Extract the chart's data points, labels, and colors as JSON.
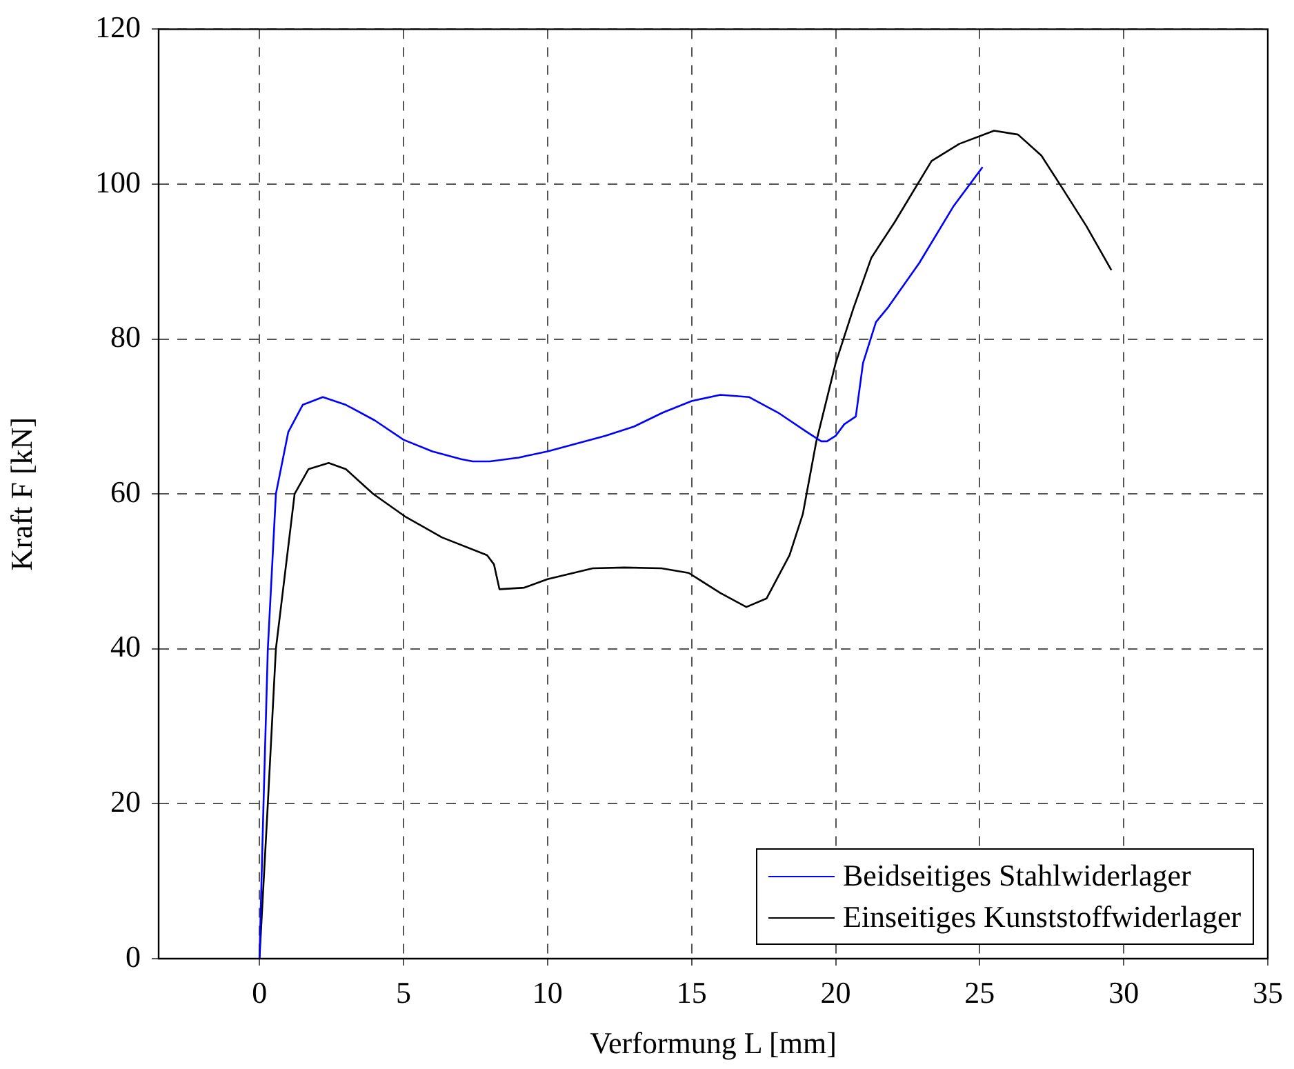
{
  "chart_data": {
    "type": "line",
    "xlabel": "Verformung L [mm]",
    "ylabel": "Kraft F [kN]",
    "xlim": [
      -3.5,
      35
    ],
    "ylim": [
      0,
      120
    ],
    "xticks": [
      0,
      5,
      10,
      15,
      20,
      25,
      30,
      35
    ],
    "yticks": [
      0,
      20,
      40,
      60,
      80,
      100,
      120
    ],
    "grid": true,
    "legend": "bottom right",
    "marker": "none",
    "series": [
      {
        "name": "Beidseitiges Stahlwiderlager",
        "color": "#0000ff",
        "x": [
          0,
          0.14,
          0.29,
          0.57,
          1,
          1.5,
          2.2,
          3,
          4,
          5,
          6,
          7,
          7.4,
          8,
          9,
          10,
          11,
          12,
          13,
          14,
          15,
          16,
          17,
          18,
          19,
          19.5,
          19.7,
          20,
          20.3,
          20.7,
          20.95,
          21.4,
          21.8,
          22.9,
          24.1,
          25.1
        ],
        "values": [
          0,
          20,
          40,
          60,
          68,
          71.5,
          72.5,
          71.5,
          69.5,
          67,
          65.5,
          64.5,
          64.2,
          64.2,
          64.7,
          65.5,
          66.5,
          67.5,
          68.7,
          70.5,
          72,
          72.8,
          72.5,
          70.5,
          68,
          66.8,
          66.8,
          67.5,
          69,
          70,
          76.9,
          82.2,
          84,
          89.8,
          97.2,
          102.2
        ]
      },
      {
        "name": "Einseitiges Kunststoffwiderlager",
        "color": "#000000",
        "x": [
          0,
          0.29,
          0.57,
          1.22,
          1.7,
          2.4,
          3,
          3.95,
          5.05,
          6.33,
          7.9,
          8.14,
          8.33,
          9.19,
          10,
          11.57,
          12.67,
          13.95,
          14.9,
          16,
          16.9,
          17.6,
          18.4,
          18.86,
          19.33,
          20,
          20.62,
          21.24,
          22.05,
          23.33,
          24.29,
          25.5,
          26.33,
          27.14,
          27.9,
          28.7,
          29.57
        ],
        "values": [
          0,
          20,
          40,
          60,
          63.2,
          64,
          63.2,
          60,
          57.1,
          54.4,
          52.1,
          50.9,
          47.7,
          47.9,
          49,
          50.4,
          50.5,
          50.4,
          49.8,
          47.2,
          45.4,
          46.5,
          52.1,
          57.4,
          66.8,
          76.9,
          84,
          90.5,
          95.1,
          103,
          105.2,
          106.9,
          106.4,
          103.7,
          99.3,
          94.6,
          88.9
        ]
      }
    ]
  }
}
